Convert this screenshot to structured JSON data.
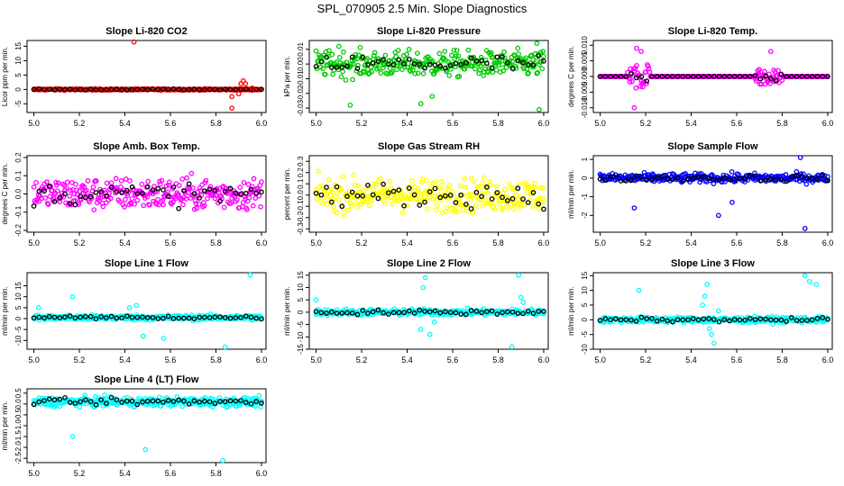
{
  "page_title": "SPL_070905  2.5 Min. Slope Diagnostics",
  "colors": {
    "red": "#ff0000",
    "green": "#00cc00",
    "magenta": "#ff00ff",
    "yellow": "#ffff00",
    "blue": "#0000ff",
    "cyan": "#00ffff",
    "black": "#000000"
  },
  "chart_data": [
    {
      "id": "co2",
      "type": "scatter",
      "title": "Slope Li-820 CO2",
      "ylabel": "Licor ppm per min.",
      "xlim": [
        4.97,
        6.02
      ],
      "ylim": [
        -8,
        17
      ],
      "xticks": [
        5.0,
        5.2,
        5.4,
        5.6,
        5.8,
        6.0
      ],
      "yticks": [
        -5,
        0,
        5,
        10,
        15
      ],
      "ytick_labels": [
        "-5",
        "0",
        "5",
        "10",
        "15"
      ],
      "color": "red",
      "spread": 0.25,
      "baseline": 0.0,
      "outliers": [
        [
          5.44,
          16.5
        ],
        [
          5.87,
          -6.5
        ],
        [
          5.87,
          -2.5
        ],
        [
          5.9,
          -1.5
        ],
        [
          5.91,
          2.0
        ],
        [
          5.92,
          3.0
        ],
        [
          5.93,
          2.0
        ],
        [
          5.96,
          0.5
        ]
      ]
    },
    {
      "id": "pressure",
      "type": "scatter",
      "title": "Slope Li-820 Pressure",
      "ylabel": "kPa per min.",
      "xlim": [
        4.97,
        6.02
      ],
      "ylim": [
        -0.033,
        0.016
      ],
      "xticks": [
        5.0,
        5.2,
        5.4,
        5.6,
        5.8,
        6.0
      ],
      "yticks": [
        -0.03,
        -0.02,
        -0.01,
        0.0,
        0.01
      ],
      "ytick_labels": [
        "-0.03",
        "-0.02",
        "-0.01",
        "0.00",
        "0.01"
      ],
      "color": "green",
      "spread": 0.009,
      "baseline": 0.0,
      "outliers": [
        [
          5.15,
          -0.028
        ],
        [
          5.46,
          -0.027
        ],
        [
          5.51,
          -0.022
        ],
        [
          5.98,
          -0.031
        ],
        [
          5.1,
          0.012
        ],
        [
          5.97,
          0.014
        ]
      ]
    },
    {
      "id": "temp",
      "type": "scatter",
      "title": "Slope Li-820 Temp.",
      "ylabel": "degrees C per min.",
      "xlim": [
        4.97,
        6.02
      ],
      "ylim": [
        -0.0115,
        0.0115
      ],
      "xticks": [
        5.0,
        5.2,
        5.4,
        5.6,
        5.8,
        6.0
      ],
      "yticks": [
        -0.01,
        -0.005,
        0.0,
        0.005,
        0.01
      ],
      "ytick_labels": [
        "-0.010",
        "-0.005",
        "0.000",
        "0.005",
        "0.010"
      ],
      "color": "magenta",
      "spread": 0.0,
      "baseline": 0.0,
      "clusters": [
        [
          5.12,
          5.22,
          0.004
        ],
        [
          5.68,
          5.8,
          0.003
        ]
      ],
      "outliers": [
        [
          5.15,
          -0.01
        ],
        [
          5.16,
          0.009
        ],
        [
          5.18,
          0.008
        ],
        [
          5.75,
          0.008
        ]
      ]
    },
    {
      "id": "box",
      "type": "scatter",
      "title": "Slope Amb. Box Temp.",
      "ylabel": "degrees C per min.",
      "xlim": [
        4.97,
        6.02
      ],
      "ylim": [
        -0.21,
        0.21
      ],
      "xticks": [
        5.0,
        5.2,
        5.4,
        5.6,
        5.8,
        6.0
      ],
      "yticks": [
        -0.2,
        -0.1,
        0.0,
        0.1,
        0.2
      ],
      "ytick_labels": [
        "-0.2",
        "-0.1",
        "0.0",
        "0.1",
        "0.2"
      ],
      "color": "magenta",
      "spread": 0.09,
      "baseline": 0.0,
      "outliers": []
    },
    {
      "id": "rh",
      "type": "scatter",
      "title": "Slope Gas Stream RH",
      "ylabel": "percent per min.",
      "xlim": [
        4.97,
        6.02
      ],
      "ylim": [
        -0.33,
        0.35
      ],
      "xticks": [
        5.0,
        5.2,
        5.4,
        5.6,
        5.8,
        6.0
      ],
      "yticks": [
        -0.3,
        -0.2,
        -0.1,
        0.0,
        0.1,
        0.2,
        0.3
      ],
      "ytick_labels": [
        "-0.3",
        "-0.2",
        "-0.1",
        "0.0",
        "0.1",
        "0.2",
        "0.3"
      ],
      "color": "yellow",
      "spread": 0.15,
      "baseline": 0.0,
      "outliers": []
    },
    {
      "id": "sampleflow",
      "type": "scatter",
      "title": "Slope Sample Flow",
      "ylabel": "ml/min per min.",
      "xlim": [
        4.97,
        6.02
      ],
      "ylim": [
        -2.9,
        1.2
      ],
      "xticks": [
        5.0,
        5.2,
        5.4,
        5.6,
        5.8,
        6.0
      ],
      "yticks": [
        -2,
        -1,
        0,
        1
      ],
      "ytick_labels": [
        "-2",
        "-1",
        "0",
        "1"
      ],
      "color": "blue",
      "spread": 0.25,
      "baseline": 0.0,
      "outliers": [
        [
          5.15,
          -1.6
        ],
        [
          5.52,
          -2.0
        ],
        [
          5.58,
          -1.3
        ],
        [
          5.9,
          -2.7
        ],
        [
          5.88,
          1.1
        ]
      ]
    },
    {
      "id": "line1",
      "type": "scatter",
      "title": "Slope Line 1 Flow",
      "ylabel": "ml/min per min.",
      "xlim": [
        4.97,
        6.02
      ],
      "ylim": [
        -14,
        21
      ],
      "xticks": [
        5.0,
        5.2,
        5.4,
        5.6,
        5.8,
        6.0
      ],
      "yticks": [
        -10,
        -5,
        0,
        5,
        10,
        15
      ],
      "ytick_labels": [
        "-10",
        "-5",
        "0",
        "5",
        "10",
        "15"
      ],
      "color": "cyan",
      "spread": 1.2,
      "baseline": 0.5,
      "outliers": [
        [
          5.02,
          5
        ],
        [
          5.17,
          10
        ],
        [
          5.42,
          5
        ],
        [
          5.45,
          6
        ],
        [
          5.48,
          -8
        ],
        [
          5.57,
          -9
        ],
        [
          5.84,
          -13
        ],
        [
          5.95,
          20
        ]
      ]
    },
    {
      "id": "line2",
      "type": "scatter",
      "title": "Slope Line 2 Flow",
      "ylabel": "ml/min per min.",
      "xlim": [
        4.97,
        6.02
      ],
      "ylim": [
        -15,
        16
      ],
      "xticks": [
        5.0,
        5.2,
        5.4,
        5.6,
        5.8,
        6.0
      ],
      "yticks": [
        -15,
        -10,
        -5,
        0,
        5,
        10,
        15
      ],
      "ytick_labels": [
        "-15",
        "-10",
        "-5",
        "0",
        "5",
        "10",
        "15"
      ],
      "color": "cyan",
      "spread": 1.3,
      "baseline": 0.0,
      "outliers": [
        [
          5.0,
          5
        ],
        [
          5.46,
          -7
        ],
        [
          5.47,
          10
        ],
        [
          5.48,
          14
        ],
        [
          5.5,
          -9
        ],
        [
          5.52,
          -4
        ],
        [
          5.86,
          -14
        ],
        [
          5.89,
          15
        ],
        [
          5.9,
          6
        ],
        [
          5.91,
          4
        ]
      ]
    },
    {
      "id": "line3",
      "type": "scatter",
      "title": "Slope Line 3 Flow",
      "ylabel": "ml/min per min.",
      "xlim": [
        4.97,
        6.02
      ],
      "ylim": [
        -10,
        16
      ],
      "xticks": [
        5.0,
        5.2,
        5.4,
        5.6,
        5.8,
        6.0
      ],
      "yticks": [
        -10,
        -5,
        0,
        5,
        10,
        15
      ],
      "ytick_labels": [
        "-10",
        "-5",
        "0",
        "5",
        "10",
        "15"
      ],
      "color": "cyan",
      "spread": 1.0,
      "baseline": 0.0,
      "outliers": [
        [
          5.17,
          10
        ],
        [
          5.45,
          5
        ],
        [
          5.46,
          8
        ],
        [
          5.47,
          12
        ],
        [
          5.48,
          -3
        ],
        [
          5.49,
          -5
        ],
        [
          5.5,
          -8
        ],
        [
          5.52,
          3
        ],
        [
          5.9,
          15
        ],
        [
          5.92,
          13
        ],
        [
          5.95,
          12
        ]
      ]
    },
    {
      "id": "line4",
      "type": "scatter",
      "title": "Slope Line 4 (LT) Flow",
      "ylabel": "ml/min per min.",
      "xlim": [
        4.97,
        6.02
      ],
      "ylim": [
        -2.7,
        0.7
      ],
      "xticks": [
        5.0,
        5.2,
        5.4,
        5.6,
        5.8,
        6.0
      ],
      "yticks": [
        -2.5,
        -2.0,
        -1.5,
        -1.0,
        -0.5,
        0.0,
        0.5
      ],
      "ytick_labels": [
        "-2.5",
        "-2.0",
        "-1.5",
        "-1.0",
        "-0.5",
        "0.0",
        "0.5"
      ],
      "color": "cyan",
      "spread": 0.22,
      "baseline": 0.1,
      "outliers": [
        [
          5.17,
          -1.5
        ],
        [
          5.49,
          -2.1
        ],
        [
          5.83,
          -2.6
        ]
      ]
    }
  ]
}
